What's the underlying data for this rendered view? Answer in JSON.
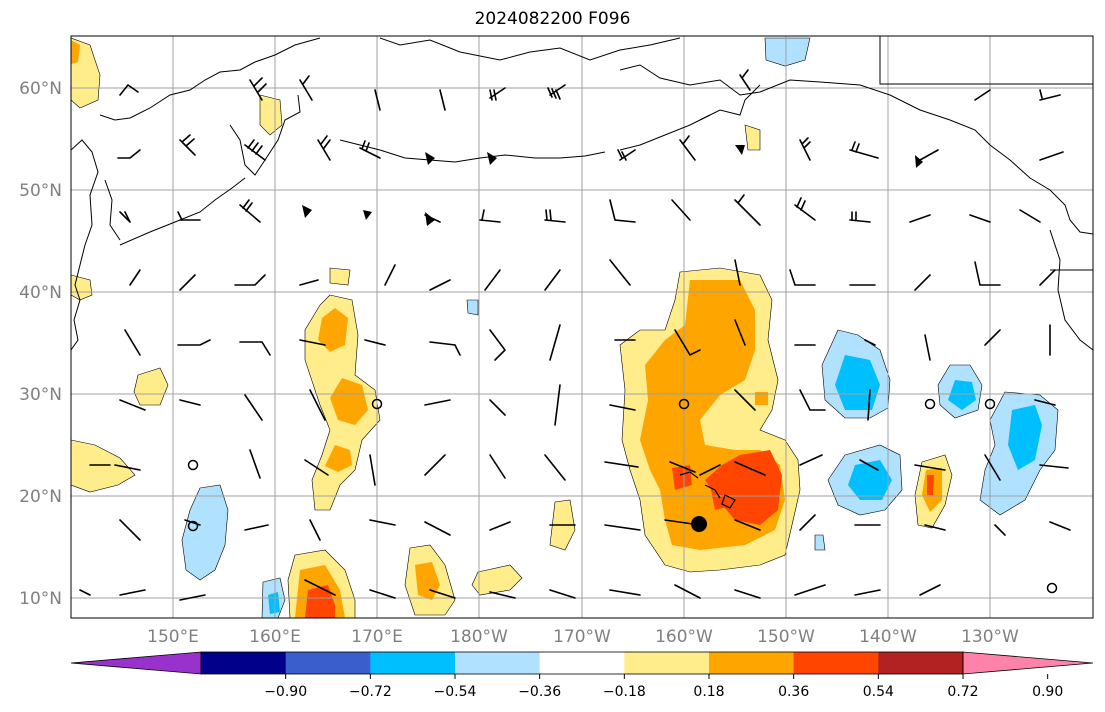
{
  "title": "2024082200 F096",
  "lat_labels": [
    "60°N",
    "50°N",
    "40°N",
    "30°N",
    "20°N",
    "10°N"
  ],
  "lon_labels": [
    "150°E",
    "160°E",
    "170°E",
    "180°W",
    "170°W",
    "160°W",
    "150°W",
    "140°W",
    "130°W"
  ],
  "colorbar": {
    "tick_labels": [
      "−0.90",
      "−0.72",
      "−0.54",
      "−0.36",
      "−0.18",
      "0.18",
      "0.36",
      "0.54",
      "0.72",
      "0.90"
    ],
    "colors": [
      "#9932cc",
      "#00008b",
      "#3a5fcd",
      "#00bfff",
      "#b0e2ff",
      "#ffffff",
      "#ffec8b",
      "#ffa500",
      "#ff4500",
      "#b22222",
      "#ff82ab"
    ]
  },
  "colors": {
    "light_yellow": "#ffec8b",
    "orange": "#ffa500",
    "red_orange": "#ff4500",
    "light_blue": "#b0e2ff",
    "deep_sky_blue": "#00bfff",
    "grid": "#a0a0a0",
    "coast": "#000000"
  }
}
